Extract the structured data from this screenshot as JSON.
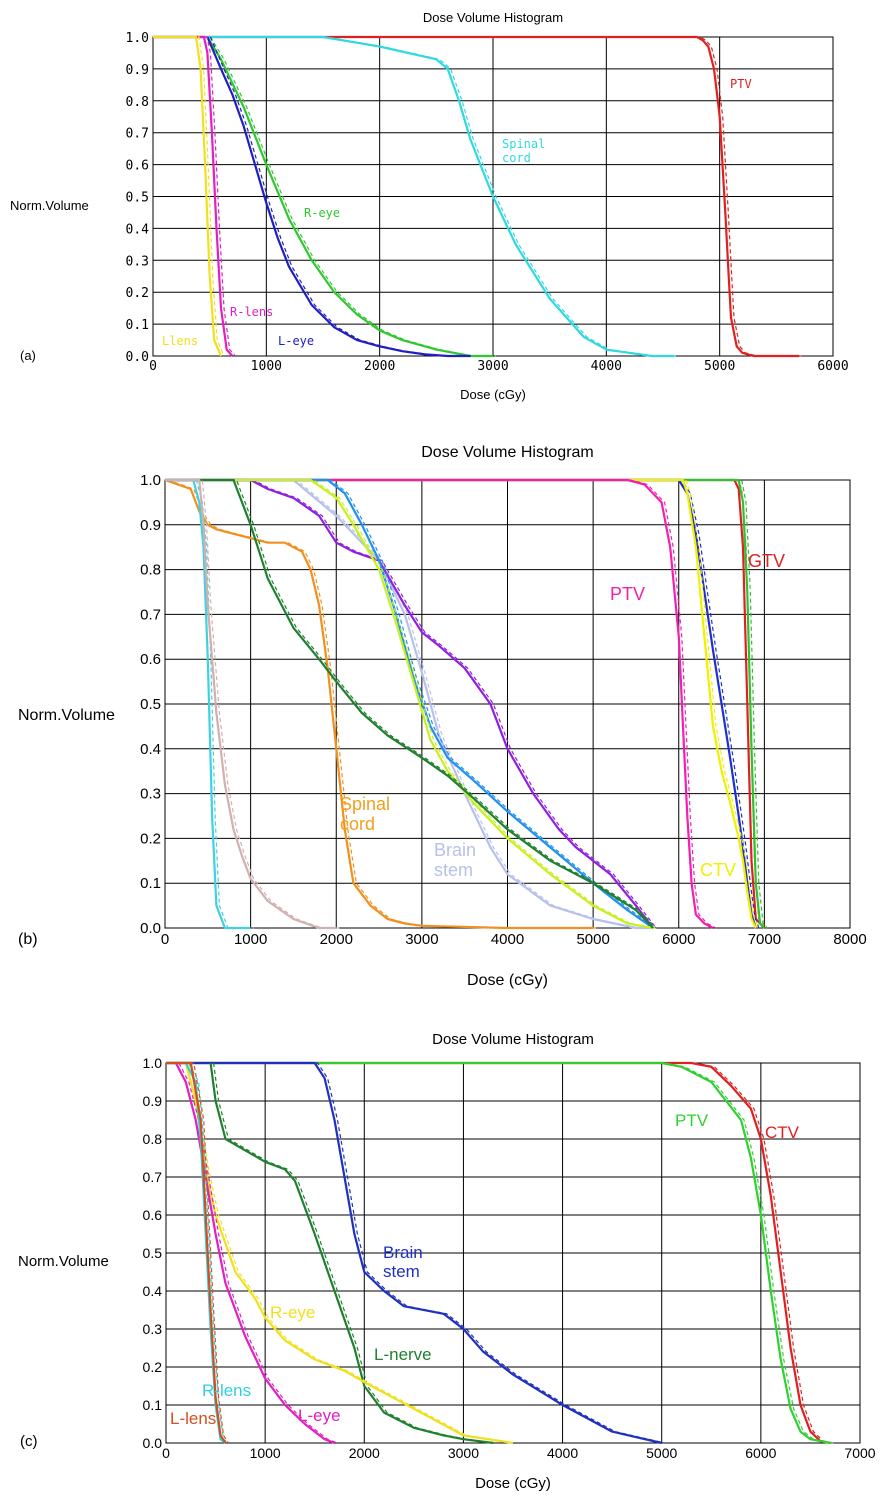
{
  "chart_data": [
    {
      "type": "line",
      "panel_label": "(a)",
      "title": "Dose Volume Histogram",
      "xlabel": "Dose (cGy)",
      "ylabel": "Norm.Volume",
      "xlim": [
        0,
        6000
      ],
      "ylim": [
        0,
        1.0
      ],
      "xticks": [
        "0",
        "1000",
        "2000",
        "3000",
        "4000",
        "5000",
        "6000"
      ],
      "yticks": [
        "0.0",
        "0.1",
        "0.2",
        "0.3",
        "0.4",
        "0.5",
        "0.6",
        "0.7",
        "0.8",
        "0.9",
        "1.0"
      ],
      "grid": true,
      "series": [
        {
          "name": "PTV",
          "color": "#e02020",
          "x": [
            0,
            4800,
            4850,
            4900,
            4950,
            5000,
            5050,
            5080,
            5100,
            5150,
            5200,
            5300,
            5700
          ],
          "y": [
            1.0,
            1.0,
            0.99,
            0.97,
            0.9,
            0.75,
            0.45,
            0.25,
            0.12,
            0.03,
            0.01,
            0.0,
            0.0
          ]
        },
        {
          "name": "Spinal cord",
          "color": "#30d8e0",
          "x": [
            0,
            1500,
            2000,
            2500,
            2600,
            2700,
            2800,
            3000,
            3200,
            3500,
            3800,
            4000,
            4200,
            4400,
            4600
          ],
          "y": [
            1.0,
            1.0,
            0.97,
            0.93,
            0.9,
            0.8,
            0.68,
            0.5,
            0.35,
            0.18,
            0.06,
            0.02,
            0.01,
            0.0,
            0.0
          ]
        },
        {
          "name": "R-eye",
          "color": "#30c830",
          "x": [
            480,
            600,
            800,
            1000,
            1200,
            1400,
            1600,
            1800,
            2000,
            2200,
            2500,
            2800,
            3000
          ],
          "y": [
            1.0,
            0.93,
            0.78,
            0.6,
            0.43,
            0.3,
            0.2,
            0.13,
            0.08,
            0.05,
            0.02,
            0.0,
            0.0
          ]
        },
        {
          "name": "L-eye",
          "color": "#2020c0",
          "x": [
            480,
            600,
            700,
            800,
            900,
            1000,
            1100,
            1200,
            1400,
            1600,
            1800,
            2000,
            2200,
            2400,
            2600,
            2800
          ],
          "y": [
            1.0,
            0.9,
            0.82,
            0.72,
            0.6,
            0.48,
            0.37,
            0.28,
            0.16,
            0.09,
            0.05,
            0.03,
            0.015,
            0.005,
            0.0,
            0.0
          ]
        },
        {
          "name": "R-lens",
          "color": "#e020c0",
          "x": [
            0,
            450,
            480,
            520,
            560,
            600,
            650,
            700
          ],
          "y": [
            1.0,
            1.0,
            0.95,
            0.7,
            0.4,
            0.15,
            0.02,
            0.0
          ]
        },
        {
          "name": "Llens",
          "color": "#f0e020",
          "x": [
            0,
            380,
            420,
            460,
            500,
            540,
            600
          ],
          "y": [
            1.0,
            1.0,
            0.9,
            0.6,
            0.25,
            0.05,
            0.0
          ]
        }
      ],
      "annotations": [
        "PTV",
        "Spinal cord",
        "R-eye",
        "L-eye",
        "R-lens",
        "Llens"
      ]
    },
    {
      "type": "line",
      "panel_label": "(b)",
      "title": "Dose Volume Histogram",
      "xlabel": "Dose (cGy)",
      "ylabel": "Norm.Volume",
      "xlim": [
        0,
        8000
      ],
      "ylim": [
        0,
        1.0
      ],
      "xticks": [
        "0",
        "1000",
        "2000",
        "3000",
        "4000",
        "5000",
        "6000",
        "7000",
        "8000"
      ],
      "yticks": [
        "0.0",
        "0.1",
        "0.2",
        "0.3",
        "0.4",
        "0.5",
        "0.6",
        "0.7",
        "0.8",
        "0.9",
        "1.0"
      ],
      "grid": true,
      "series": [
        {
          "name": "GTV",
          "color": "#e02020",
          "x": [
            0,
            6650,
            6700,
            6750,
            6800,
            6850,
            6900,
            7000
          ],
          "y": [
            1.0,
            1.0,
            0.98,
            0.85,
            0.5,
            0.15,
            0.02,
            0.0
          ]
        },
        {
          "name": "",
          "color": "#30c030",
          "x": [
            0,
            6700,
            6750,
            6800,
            6850,
            6900,
            6950,
            7000
          ],
          "y": [
            1.0,
            1.0,
            0.95,
            0.75,
            0.4,
            0.1,
            0.01,
            0.0
          ]
        },
        {
          "name": "",
          "color": "#2030d0",
          "x": [
            0,
            6000,
            6100,
            6200,
            6300,
            6400,
            6500,
            6600,
            6700,
            6750,
            6800,
            6850,
            6900
          ],
          "y": [
            1.0,
            1.0,
            0.97,
            0.88,
            0.75,
            0.62,
            0.5,
            0.38,
            0.25,
            0.18,
            0.1,
            0.03,
            0.0
          ]
        },
        {
          "name": "CTV",
          "color": "#f0f000",
          "x": [
            0,
            6050,
            6100,
            6200,
            6300,
            6400,
            6500,
            6600,
            6700,
            6750,
            6800,
            6850,
            6900
          ],
          "y": [
            1.0,
            1.0,
            0.97,
            0.85,
            0.65,
            0.45,
            0.35,
            0.28,
            0.2,
            0.15,
            0.08,
            0.02,
            0.0
          ]
        },
        {
          "name": "PTV",
          "color": "#f020b0",
          "x": [
            0,
            5400,
            5600,
            5800,
            5900,
            6000,
            6050,
            6100,
            6150,
            6200,
            6300,
            6400
          ],
          "y": [
            1.0,
            1.0,
            0.99,
            0.95,
            0.85,
            0.65,
            0.45,
            0.25,
            0.1,
            0.03,
            0.01,
            0.0
          ]
        },
        {
          "name": "Spinal cord",
          "color": "#f09020",
          "x": [
            0,
            300,
            400,
            500,
            600,
            800,
            1000,
            1200,
            1400,
            1500,
            1600,
            1700,
            1800,
            1900,
            2000,
            2100,
            2200,
            2400,
            2600,
            2800,
            3000,
            4000,
            5000
          ],
          "y": [
            1.0,
            0.98,
            0.93,
            0.9,
            0.89,
            0.88,
            0.87,
            0.86,
            0.86,
            0.85,
            0.84,
            0.8,
            0.72,
            0.58,
            0.4,
            0.22,
            0.1,
            0.05,
            0.02,
            0.01,
            0.005,
            0.0,
            0.0
          ]
        },
        {
          "name": "Brain stem",
          "color": "#b8c0ec",
          "x": [
            0,
            1500,
            2000,
            2200,
            2500,
            2800,
            3000,
            3200,
            3500,
            3800,
            4000,
            4500,
            5000,
            5500,
            5700
          ],
          "y": [
            1.0,
            1.0,
            0.92,
            0.88,
            0.82,
            0.7,
            0.57,
            0.43,
            0.3,
            0.18,
            0.12,
            0.05,
            0.02,
            0.0,
            0.0
          ]
        },
        {
          "name": "",
          "color": "#9020e0",
          "x": [
            0,
            1000,
            1200,
            1500,
            1800,
            2000,
            2200,
            2500,
            2800,
            3000,
            3200,
            3500,
            3800,
            4000,
            4300,
            4600,
            4800,
            5200,
            5500,
            5700
          ],
          "y": [
            1.0,
            1.0,
            0.98,
            0.96,
            0.92,
            0.86,
            0.84,
            0.82,
            0.72,
            0.66,
            0.63,
            0.58,
            0.5,
            0.4,
            0.3,
            0.22,
            0.18,
            0.12,
            0.05,
            0.0
          ]
        },
        {
          "name": "",
          "color": "#2090f0",
          "x": [
            0,
            1900,
            2100,
            2300,
            2500,
            2700,
            2900,
            3100,
            3300,
            3600,
            4000,
            4500,
            5000,
            5400,
            5700
          ],
          "y": [
            1.0,
            1.0,
            0.97,
            0.9,
            0.82,
            0.7,
            0.56,
            0.45,
            0.38,
            0.33,
            0.26,
            0.18,
            0.1,
            0.04,
            0.0
          ]
        },
        {
          "name": "",
          "color": "#c8f020",
          "x": [
            0,
            1700,
            2000,
            2200,
            2500,
            2700,
            2900,
            3100,
            3300,
            3600,
            4000,
            4500,
            5000,
            5400,
            5700
          ],
          "y": [
            1.0,
            1.0,
            0.96,
            0.9,
            0.8,
            0.68,
            0.55,
            0.42,
            0.35,
            0.28,
            0.2,
            0.12,
            0.05,
            0.01,
            0.0
          ]
        },
        {
          "name": "",
          "color": "#208030",
          "x": [
            0,
            800,
            1000,
            1200,
            1500,
            1800,
            2000,
            2300,
            2600,
            3000,
            3300,
            3600,
            4000,
            4500,
            5000,
            5500,
            5700
          ],
          "y": [
            1.0,
            1.0,
            0.9,
            0.78,
            0.67,
            0.6,
            0.55,
            0.48,
            0.43,
            0.38,
            0.34,
            0.29,
            0.22,
            0.15,
            0.1,
            0.04,
            0.0
          ]
        },
        {
          "name": "",
          "color": "#40d0e0",
          "x": [
            0,
            330,
            400,
            450,
            500,
            550,
            600,
            700,
            1000
          ],
          "y": [
            1.0,
            1.0,
            0.95,
            0.85,
            0.6,
            0.25,
            0.05,
            0.0,
            0.0
          ]
        },
        {
          "name": "",
          "color": "#d0b0b0",
          "x": [
            0,
            400,
            450,
            500,
            600,
            700,
            800,
            900,
            1000,
            1200,
            1500,
            1800,
            2000
          ],
          "y": [
            1.0,
            1.0,
            0.9,
            0.72,
            0.48,
            0.32,
            0.22,
            0.16,
            0.11,
            0.06,
            0.02,
            0.0,
            0.0
          ]
        }
      ],
      "annotations": [
        "GTV",
        "PTV",
        "CTV",
        "Spinal cord",
        "Brain stem"
      ]
    },
    {
      "type": "line",
      "panel_label": "(c)",
      "title": "Dose Volume Histogram",
      "xlabel": "Dose (cGy)",
      "ylabel": "Norm.Volume",
      "xlim": [
        0,
        7000
      ],
      "ylim": [
        0,
        1.0
      ],
      "xticks": [
        "0",
        "1000",
        "2000",
        "3000",
        "4000",
        "5000",
        "6000",
        "7000"
      ],
      "yticks": [
        "0.0",
        "0.1",
        "0.2",
        "0.3",
        "0.4",
        "0.5",
        "0.6",
        "0.7",
        "0.8",
        "0.9",
        "1.0"
      ],
      "grid": true,
      "series": [
        {
          "name": "CTV",
          "color": "#e02020",
          "x": [
            0,
            5300,
            5500,
            5700,
            5900,
            6000,
            6100,
            6200,
            6300,
            6400,
            6500,
            6600,
            6700
          ],
          "y": [
            1.0,
            1.0,
            0.99,
            0.94,
            0.88,
            0.8,
            0.65,
            0.45,
            0.25,
            0.1,
            0.03,
            0.005,
            0.0
          ]
        },
        {
          "name": "PTV",
          "color": "#30d030",
          "x": [
            0,
            5000,
            5200,
            5500,
            5800,
            5900,
            6000,
            6100,
            6200,
            6300,
            6400,
            6500,
            6700
          ],
          "y": [
            1.0,
            1.0,
            0.99,
            0.95,
            0.85,
            0.75,
            0.6,
            0.4,
            0.22,
            0.09,
            0.03,
            0.01,
            0.0
          ]
        },
        {
          "name": "Brain stem",
          "color": "#2030c0",
          "x": [
            0,
            1500,
            1600,
            1700,
            1800,
            1900,
            2000,
            2200,
            2400,
            2800,
            3000,
            3200,
            3500,
            4000,
            4500,
            5000
          ],
          "y": [
            1.0,
            1.0,
            0.96,
            0.85,
            0.7,
            0.55,
            0.45,
            0.4,
            0.36,
            0.34,
            0.3,
            0.24,
            0.18,
            0.1,
            0.03,
            0.0
          ]
        },
        {
          "name": "L-nerve",
          "color": "#208030",
          "x": [
            450,
            500,
            600,
            800,
            1000,
            1200,
            1300,
            1500,
            1700,
            1900,
            2000,
            2200,
            2500,
            2800,
            3000,
            3300
          ],
          "y": [
            1.0,
            0.9,
            0.8,
            0.77,
            0.74,
            0.72,
            0.69,
            0.55,
            0.4,
            0.25,
            0.15,
            0.08,
            0.04,
            0.02,
            0.01,
            0.0
          ]
        },
        {
          "name": "R-eye",
          "color": "#f0e020",
          "x": [
            200,
            300,
            400,
            500,
            700,
            900,
            1000,
            1200,
            1500,
            1800,
            2000,
            2500,
            3000,
            3500
          ],
          "y": [
            1.0,
            0.9,
            0.72,
            0.6,
            0.45,
            0.38,
            0.33,
            0.27,
            0.22,
            0.19,
            0.16,
            0.09,
            0.02,
            0.0
          ]
        },
        {
          "name": "L-eye",
          "color": "#e020c0",
          "x": [
            100,
            200,
            300,
            400,
            500,
            600,
            800,
            1000,
            1200,
            1400,
            1600,
            1700
          ],
          "y": [
            1.0,
            0.95,
            0.85,
            0.7,
            0.55,
            0.42,
            0.28,
            0.17,
            0.1,
            0.05,
            0.01,
            0.0
          ]
        },
        {
          "name": "R-lens",
          "color": "#30d0e0",
          "x": [
            0,
            200,
            300,
            350,
            400,
            450,
            500,
            550,
            600
          ],
          "y": [
            1.0,
            1.0,
            0.95,
            0.8,
            0.55,
            0.3,
            0.1,
            0.01,
            0.0
          ]
        },
        {
          "name": "L-lens",
          "color": "#d05020",
          "x": [
            0,
            250,
            350,
            400,
            450,
            500,
            550,
            600
          ],
          "y": [
            1.0,
            1.0,
            0.85,
            0.6,
            0.35,
            0.12,
            0.02,
            0.0
          ]
        }
      ],
      "annotations": [
        "PTV",
        "CTV",
        "Brain stem",
        "R-eye",
        "L-nerve",
        "R-lens",
        "L-eye",
        "L-lens"
      ]
    }
  ]
}
